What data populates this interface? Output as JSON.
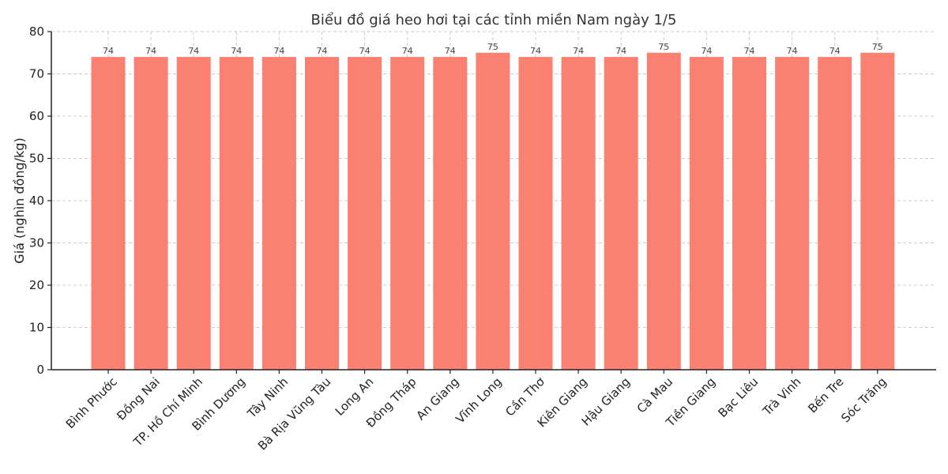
{
  "chart_data": {
    "type": "bar",
    "title": "Biểu đồ giá heo hơi tại các tỉnh miền Nam ngày 1/5",
    "xlabel": "",
    "ylabel": "Giá (nghìn đồng/kg)",
    "ylim": [
      0,
      80
    ],
    "yticks": [
      0,
      10,
      20,
      30,
      40,
      50,
      60,
      70,
      80
    ],
    "grid": true,
    "bar_color": "#fa8072",
    "categories": [
      "Bình Phước",
      "Đồng Nai",
      "TP. Hồ Chí Minh",
      "Bình Dương",
      "Tây Ninh",
      "Bà Rịa  Vũng Tàu",
      "Long An",
      "Đồng Tháp",
      "An Giang",
      "Vĩnh Long",
      "Cần Thơ",
      "Kiên Giang",
      "Hậu Giang",
      "Cà Mau",
      "Tiền Giang",
      "Bạc Liêu",
      "Trà Vinh",
      "Bến Tre",
      "Sóc Trăng"
    ],
    "values": [
      74,
      74,
      74,
      74,
      74,
      74,
      74,
      74,
      74,
      75,
      74,
      74,
      74,
      75,
      74,
      74,
      74,
      74,
      75
    ]
  }
}
